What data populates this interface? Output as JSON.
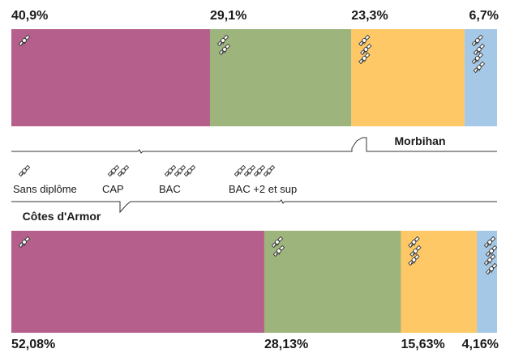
{
  "colors": {
    "sans_diplome": "#b5608c",
    "cap": "#9db57d",
    "bac": "#fdc865",
    "bac2": "#a5c8e6",
    "line": "#333333"
  },
  "icon": "diploma-scroll-icon",
  "legend": {
    "items": [
      {
        "label": "Sans diplôme",
        "icon_count": 1
      },
      {
        "label": "CAP",
        "icon_count": 2
      },
      {
        "label": "BAC",
        "icon_count": 3
      },
      {
        "label": "BAC +2 et sup",
        "icon_count": 4
      }
    ]
  },
  "chart_data": {
    "type": "bar",
    "orientation": "horizontal-stacked-100",
    "categories": [
      "Sans diplôme",
      "CAP",
      "BAC",
      "BAC +2 et sup"
    ],
    "series": [
      {
        "name": "Morbihan",
        "values": [
          40.9,
          29.1,
          23.3,
          6.7
        ],
        "labels": [
          "40,9%",
          "29,1%",
          "23,3%",
          "6,7%"
        ],
        "icon_stacks": [
          1,
          2,
          3,
          4
        ]
      },
      {
        "name": "Côtes d'Armor",
        "values": [
          52.08,
          28.13,
          15.63,
          4.16
        ],
        "labels": [
          "52,08%",
          "28,13%",
          "15,63%",
          "4,16%"
        ],
        "icon_stacks": [
          1,
          2,
          3,
          4
        ]
      }
    ]
  }
}
